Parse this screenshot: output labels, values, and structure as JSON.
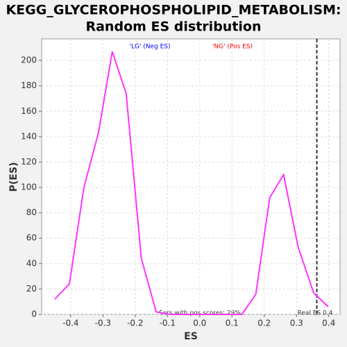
{
  "chart_data": {
    "type": "line",
    "title": [
      "KEGG_GLYCEROPHOSPHOLIPID_METABOLISM:",
      "Random ES distribution"
    ],
    "x_label": "ES",
    "y_label": "P(ES)",
    "legend_labels": [
      {
        "text": "'LG' (Neg ES)",
        "color": "#0000ff"
      },
      {
        "text": "'NG' (Pos ES)",
        "color": "#ff0000"
      }
    ],
    "annotation": "Sets with pos scores: 29%",
    "real_es": {
      "value": 0.363,
      "label": "Real ES 0.4"
    },
    "x": [
      -0.449,
      -0.404,
      -0.359,
      -0.314,
      -0.271,
      -0.228,
      -0.181,
      -0.135,
      -0.09,
      -0.045,
      0,
      0.045,
      0.09,
      0.131,
      0.174,
      0.217,
      0.26,
      0.305,
      0.353,
      0.398
    ],
    "series": [
      {
        "color": "#ff33ff",
        "values": [
          12,
          24,
          100,
          143,
          207,
          174,
          44,
          2,
          0,
          0,
          0,
          0,
          0,
          0,
          16,
          92,
          110,
          53,
          17,
          6
        ]
      }
    ],
    "xlim": [
      -0.49,
      0.435
    ],
    "ylim": [
      0,
      217
    ],
    "xticks": [
      -0.4,
      -0.3,
      -0.2,
      -0.1,
      {
        "value": 0,
        "label": "0.0"
      },
      0.1,
      0.2,
      0.3,
      0.4
    ],
    "yticks": [
      0,
      20,
      40,
      60,
      80,
      100,
      120,
      140,
      160,
      180,
      200
    ],
    "grid": true
  }
}
